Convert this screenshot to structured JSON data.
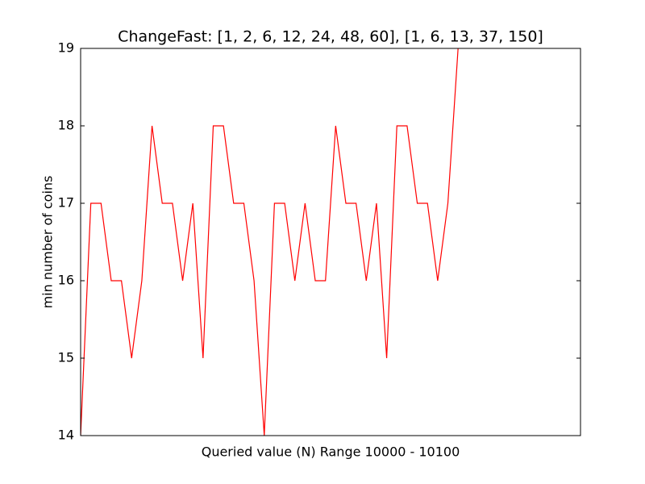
{
  "chart_data": {
    "type": "line",
    "title": "ChangeFast: [1, 2, 6, 12, 24, 48, 60], [1, 6, 13, 37, 150]",
    "x_label": "Queried value (N) Range 10000 - 10100",
    "y_label": "min number of coins",
    "color": "#ff0000",
    "values": [
      14,
      17,
      17,
      16,
      16,
      15,
      16,
      18,
      17,
      17,
      16,
      17,
      15,
      18,
      18,
      17,
      17,
      16,
      14,
      17,
      17,
      16,
      17,
      16,
      16,
      18,
      17,
      17,
      16,
      17,
      15,
      18,
      18,
      17,
      17,
      16,
      17,
      19
    ],
    "xlim": [
      0,
      49
    ],
    "ylim": [
      14,
      19
    ],
    "yticks": [
      14,
      15,
      16,
      17,
      18,
      19
    ]
  }
}
